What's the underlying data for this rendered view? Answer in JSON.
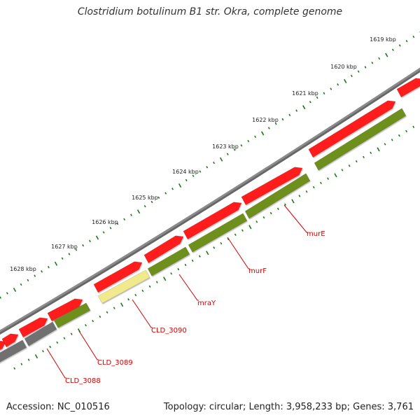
{
  "title": "Clostridium botulinum B1 str. Okra, complete genome",
  "accession": "Accession: NC_010516",
  "topology": "Topology: circular; Length: 3,958,233 bp; Genes: 3,761",
  "colors": {
    "backbone": "#8a8a8a",
    "forward_cds": "#ff1a1a",
    "reverse_cds": "#6e8f1f",
    "pseudo_gene": "#f0ea8c",
    "other_gene": "#707070",
    "ticks": "#1a7a1a",
    "gene_label": "#d40000",
    "kbp_label": "#222222"
  },
  "kbp_ticks": [
    "1619 kbp",
    "1620 kbp",
    "1621 kbp",
    "1622 kbp",
    "1623 kbp",
    "1624 kbp",
    "1625 kbp",
    "1626 kbp",
    "1627 kbp",
    "1628 kbp"
  ],
  "genes": [
    "murE",
    "murF",
    "mraY",
    "CLD_3090",
    "CLD_3089",
    "CLD_3088"
  ]
}
